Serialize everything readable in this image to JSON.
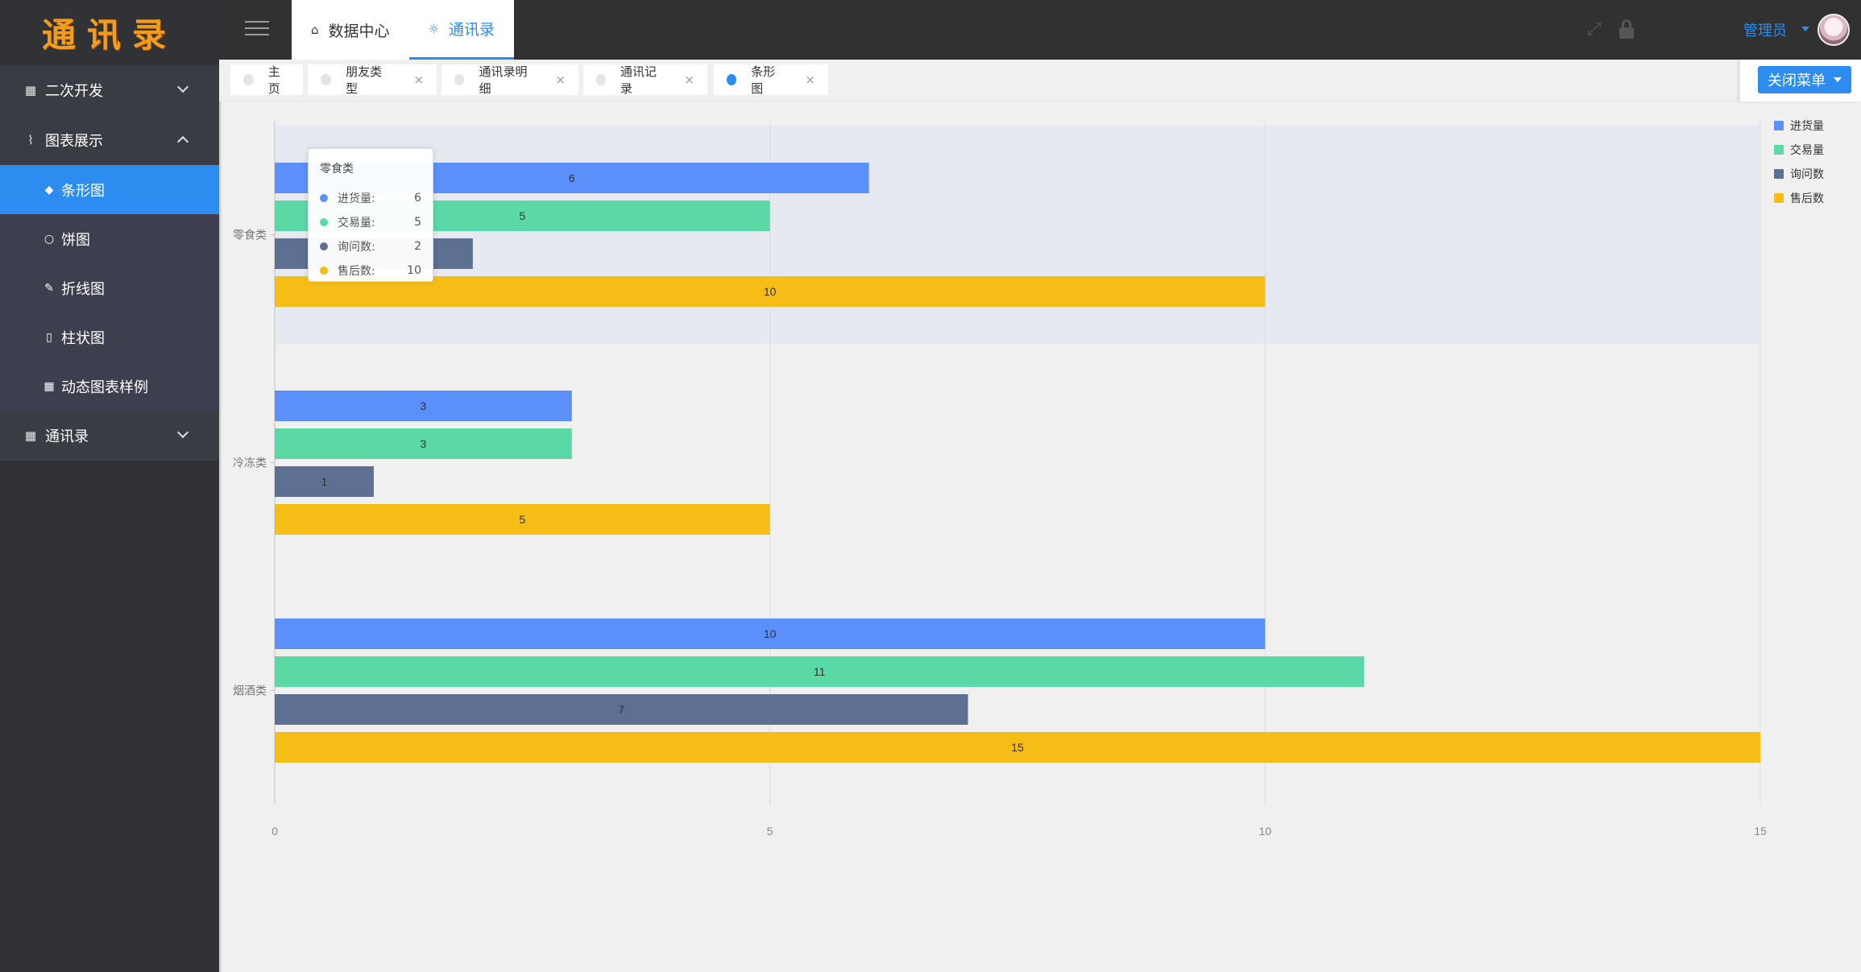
{
  "app": {
    "logo_text": "通讯录"
  },
  "sidebar": {
    "groups": [
      {
        "label": "二次开发",
        "icon": "grid-icon",
        "expanded": false
      },
      {
        "label": "图表展示",
        "icon": "pulse-icon",
        "expanded": true
      },
      {
        "label": "通讯录",
        "icon": "grid-icon",
        "expanded": false
      }
    ],
    "sub_items": [
      {
        "label": "条形图",
        "icon": "tag-icon",
        "active": true
      },
      {
        "label": "饼图",
        "icon": "circle-icon",
        "active": false
      },
      {
        "label": "折线图",
        "icon": "pen-icon",
        "active": false
      },
      {
        "label": "柱状图",
        "icon": "mobile-icon",
        "active": false
      },
      {
        "label": "动态图表样例",
        "icon": "grid-icon",
        "active": false
      }
    ]
  },
  "header": {
    "tabs": [
      {
        "label": "数据中心",
        "icon": "home-icon",
        "active": false
      },
      {
        "label": "通讯录",
        "icon": "bulb-icon",
        "active": true
      }
    ],
    "user": "管理员"
  },
  "tagbar": {
    "tags": [
      {
        "label": "主页",
        "active": false,
        "closable": false
      },
      {
        "label": "朋友类型",
        "active": false,
        "closable": true
      },
      {
        "label": "通讯录明细",
        "active": false,
        "closable": true
      },
      {
        "label": "通讯记录",
        "active": false,
        "closable": true
      },
      {
        "label": "条形图",
        "active": true,
        "closable": true
      }
    ],
    "close_menu_label": "关闭菜单",
    "close_glyph": "×"
  },
  "chart_data": {
    "type": "bar",
    "orientation": "horizontal",
    "categories": [
      "零食类",
      "冷冻类",
      "烟酒类"
    ],
    "series": [
      {
        "name": "进货量",
        "color": "#5b8ff9",
        "values": [
          6,
          3,
          10
        ]
      },
      {
        "name": "交易量",
        "color": "#5ad8a6",
        "values": [
          5,
          3,
          11
        ]
      },
      {
        "name": "询问数",
        "color": "#5d7092",
        "values": [
          2,
          1,
          7
        ]
      },
      {
        "name": "售后数",
        "color": "#f6bd16",
        "values": [
          10,
          5,
          15
        ]
      }
    ],
    "xlim": [
      0,
      15
    ],
    "xticks": [
      0,
      5,
      10,
      15
    ],
    "grid": true,
    "legend_position": "top-right",
    "highlighted_category": "零食类",
    "tooltip": {
      "title": "零食类",
      "rows": [
        {
          "name": "进货量:",
          "value": "6",
          "color": "#5b8ff9"
        },
        {
          "name": "交易量:",
          "value": "5",
          "color": "#5ad8a6"
        },
        {
          "name": "询问数:",
          "value": "2",
          "color": "#5d7092"
        },
        {
          "name": "售后数:",
          "value": "10",
          "color": "#f6bd16"
        }
      ]
    }
  }
}
